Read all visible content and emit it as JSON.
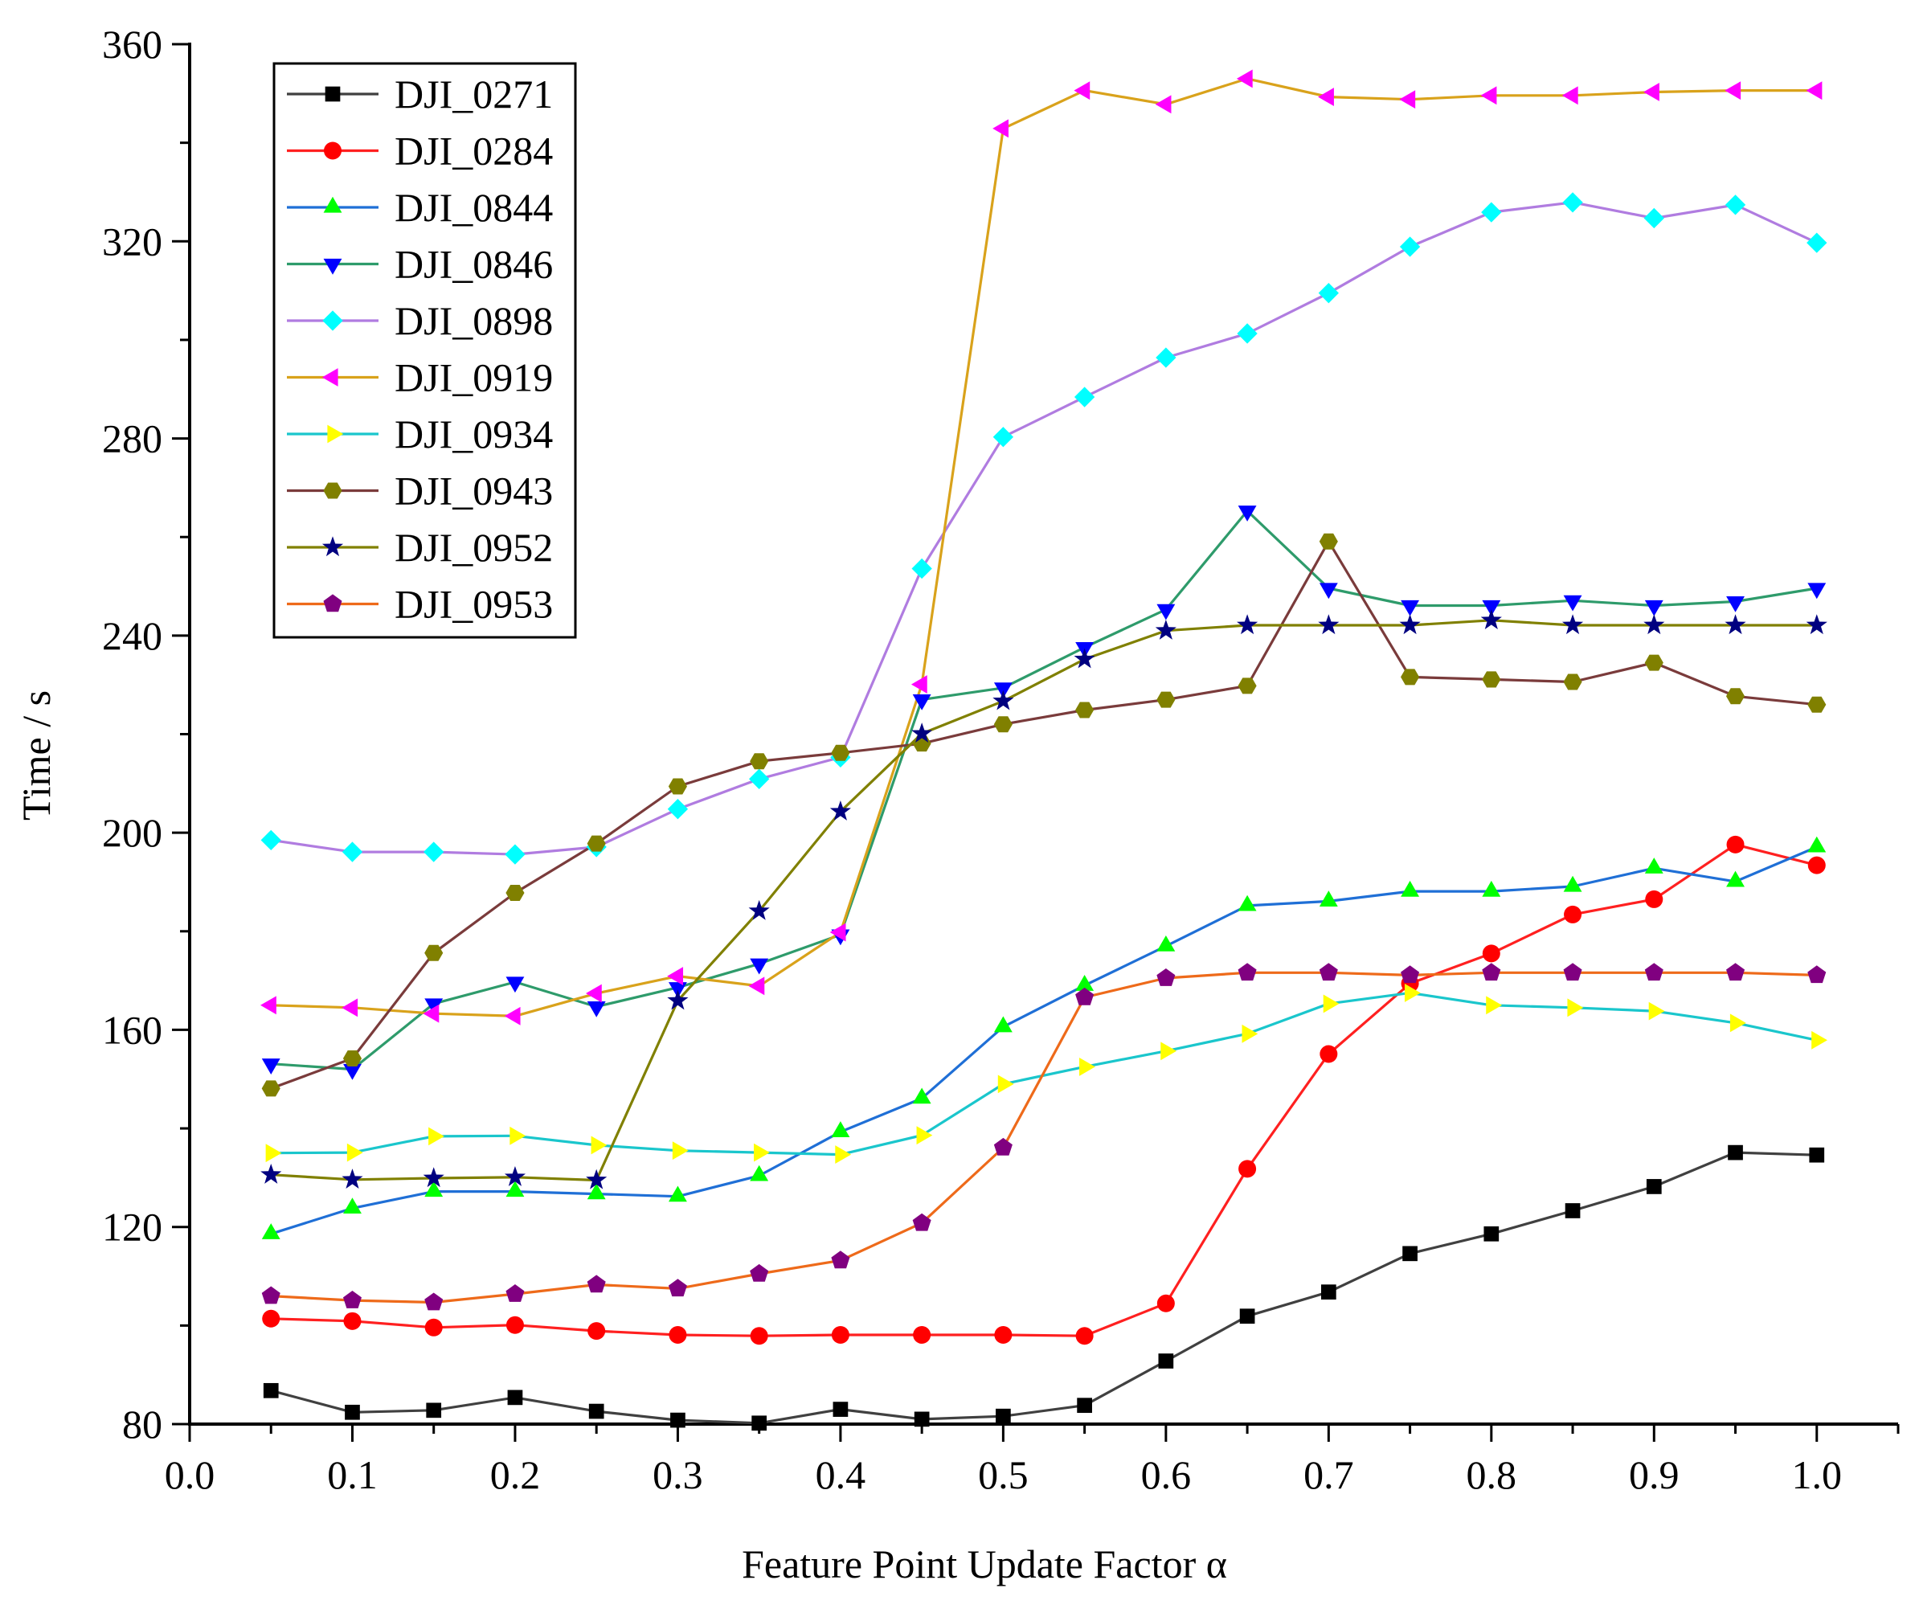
{
  "chart_data": {
    "type": "line",
    "title": "",
    "xlabel": "Feature Point Update Factor α",
    "ylabel": "Time / s",
    "xlim": [
      0.0,
      1.05
    ],
    "ylim": [
      80,
      360
    ],
    "xticks": [
      0.0,
      0.1,
      0.2,
      0.3,
      0.4,
      0.5,
      0.6,
      0.7,
      0.8,
      0.9,
      1.0
    ],
    "xtick_labels": [
      "0.0",
      "0.1",
      "0.2",
      "0.3",
      "0.4",
      "0.5",
      "0.6",
      "0.7",
      "0.8",
      "0.9",
      "1.0"
    ],
    "yticks": [
      80,
      120,
      160,
      200,
      240,
      280,
      320,
      360
    ],
    "ytick_labels": [
      "80",
      "120",
      "160",
      "200",
      "240",
      "280",
      "320",
      "360"
    ],
    "grid": false,
    "legend_position": "top-left",
    "x": [
      0.05,
      0.1,
      0.15,
      0.2,
      0.25,
      0.3,
      0.35,
      0.4,
      0.45,
      0.5,
      0.55,
      0.6,
      0.65,
      0.7,
      0.75,
      0.8,
      0.85,
      0.9,
      0.95,
      1.0
    ],
    "series": [
      {
        "name": "DJI_0271",
        "line_color": "#404040",
        "marker_color": "#000000",
        "marker": "square",
        "values": [
          86.8,
          82.4,
          82.8,
          85.4,
          82.6,
          80.8,
          80.2,
          83.0,
          81.0,
          81.6,
          83.8,
          92.8,
          101.9,
          106.8,
          114.6,
          118.6,
          123.3,
          128.2,
          135.1,
          134.6
        ]
      },
      {
        "name": "DJI_0284",
        "line_color": "#ff2020",
        "marker_color": "#ff0000",
        "marker": "circle",
        "values": [
          101.4,
          100.9,
          99.6,
          100.1,
          98.9,
          98.1,
          97.9,
          98.1,
          98.1,
          98.1,
          97.9,
          104.5,
          131.8,
          155.1,
          169.4,
          175.5,
          183.4,
          186.5,
          197.6,
          193.4
        ]
      },
      {
        "name": "DJI_0844",
        "line_color": "#1f6fd6",
        "marker_color": "#00ff00",
        "marker": "triangle-up",
        "values": [
          118.6,
          123.8,
          127.2,
          127.2,
          126.7,
          126.2,
          130.4,
          139.3,
          146.1,
          160.6,
          169.0,
          177.0,
          185.2,
          186.1,
          188.1,
          188.1,
          189.1,
          192.8,
          190.1,
          197.1
        ]
      },
      {
        "name": "DJI_0846",
        "line_color": "#2e9b6b",
        "marker_color": "#0000ff",
        "marker": "triangle-down",
        "values": [
          153.1,
          152.0,
          165.3,
          169.7,
          164.7,
          168.6,
          173.4,
          179.3,
          227.0,
          229.4,
          237.6,
          245.3,
          265.3,
          249.6,
          246.1,
          246.1,
          247.1,
          246.1,
          246.9,
          249.6
        ]
      },
      {
        "name": "DJI_0898",
        "line_color": "#b07ce0",
        "marker_color": "#00ffff",
        "marker": "diamond",
        "values": [
          198.5,
          196.1,
          196.1,
          195.6,
          197.1,
          204.8,
          210.9,
          215.3,
          253.6,
          280.3,
          288.4,
          296.4,
          301.3,
          309.5,
          318.9,
          325.9,
          327.9,
          324.7,
          327.4,
          319.7
        ]
      },
      {
        "name": "DJI_0919",
        "line_color": "#d9a21b",
        "marker_color": "#ff00ff",
        "marker": "triangle-left",
        "values": [
          165.0,
          164.5,
          163.3,
          162.8,
          167.4,
          170.9,
          168.9,
          179.8,
          230.1,
          342.9,
          350.6,
          347.8,
          353.0,
          349.3,
          348.8,
          349.6,
          349.6,
          350.3,
          350.6,
          350.6
        ]
      },
      {
        "name": "DJI_0934",
        "line_color": "#1ac6cc",
        "marker_color": "#ffff00",
        "marker": "triangle-right",
        "values": [
          135.0,
          135.1,
          138.4,
          138.5,
          136.6,
          135.5,
          135.1,
          134.7,
          138.6,
          149.0,
          152.5,
          155.7,
          159.2,
          165.3,
          167.5,
          165.0,
          164.5,
          163.8,
          161.4,
          157.9
        ]
      },
      {
        "name": "DJI_0943",
        "line_color": "#7a3b3b",
        "marker_color": "#808000",
        "marker": "hexagon",
        "values": [
          148.1,
          154.2,
          175.6,
          187.8,
          197.8,
          209.4,
          214.5,
          216.2,
          218.1,
          222.0,
          224.9,
          227.0,
          229.8,
          259.1,
          231.6,
          231.1,
          230.6,
          234.5,
          227.7,
          226.0
        ]
      },
      {
        "name": "DJI_0952",
        "line_color": "#808000",
        "marker_color": "#000080",
        "marker": "star",
        "values": [
          130.6,
          129.6,
          129.9,
          130.1,
          129.5,
          165.9,
          184.1,
          204.3,
          220.1,
          226.7,
          235.2,
          241.0,
          242.1,
          242.1,
          242.1,
          243.1,
          242.1,
          242.1,
          242.1,
          242.1
        ]
      },
      {
        "name": "DJI_0953",
        "line_color": "#ee6a1a",
        "marker_color": "#800080",
        "marker": "pentagon",
        "values": [
          106.0,
          105.1,
          104.7,
          106.4,
          108.3,
          107.5,
          110.5,
          113.2,
          120.8,
          136.1,
          166.6,
          170.5,
          171.6,
          171.6,
          171.1,
          171.6,
          171.6,
          171.6,
          171.6,
          171.1
        ]
      }
    ]
  }
}
